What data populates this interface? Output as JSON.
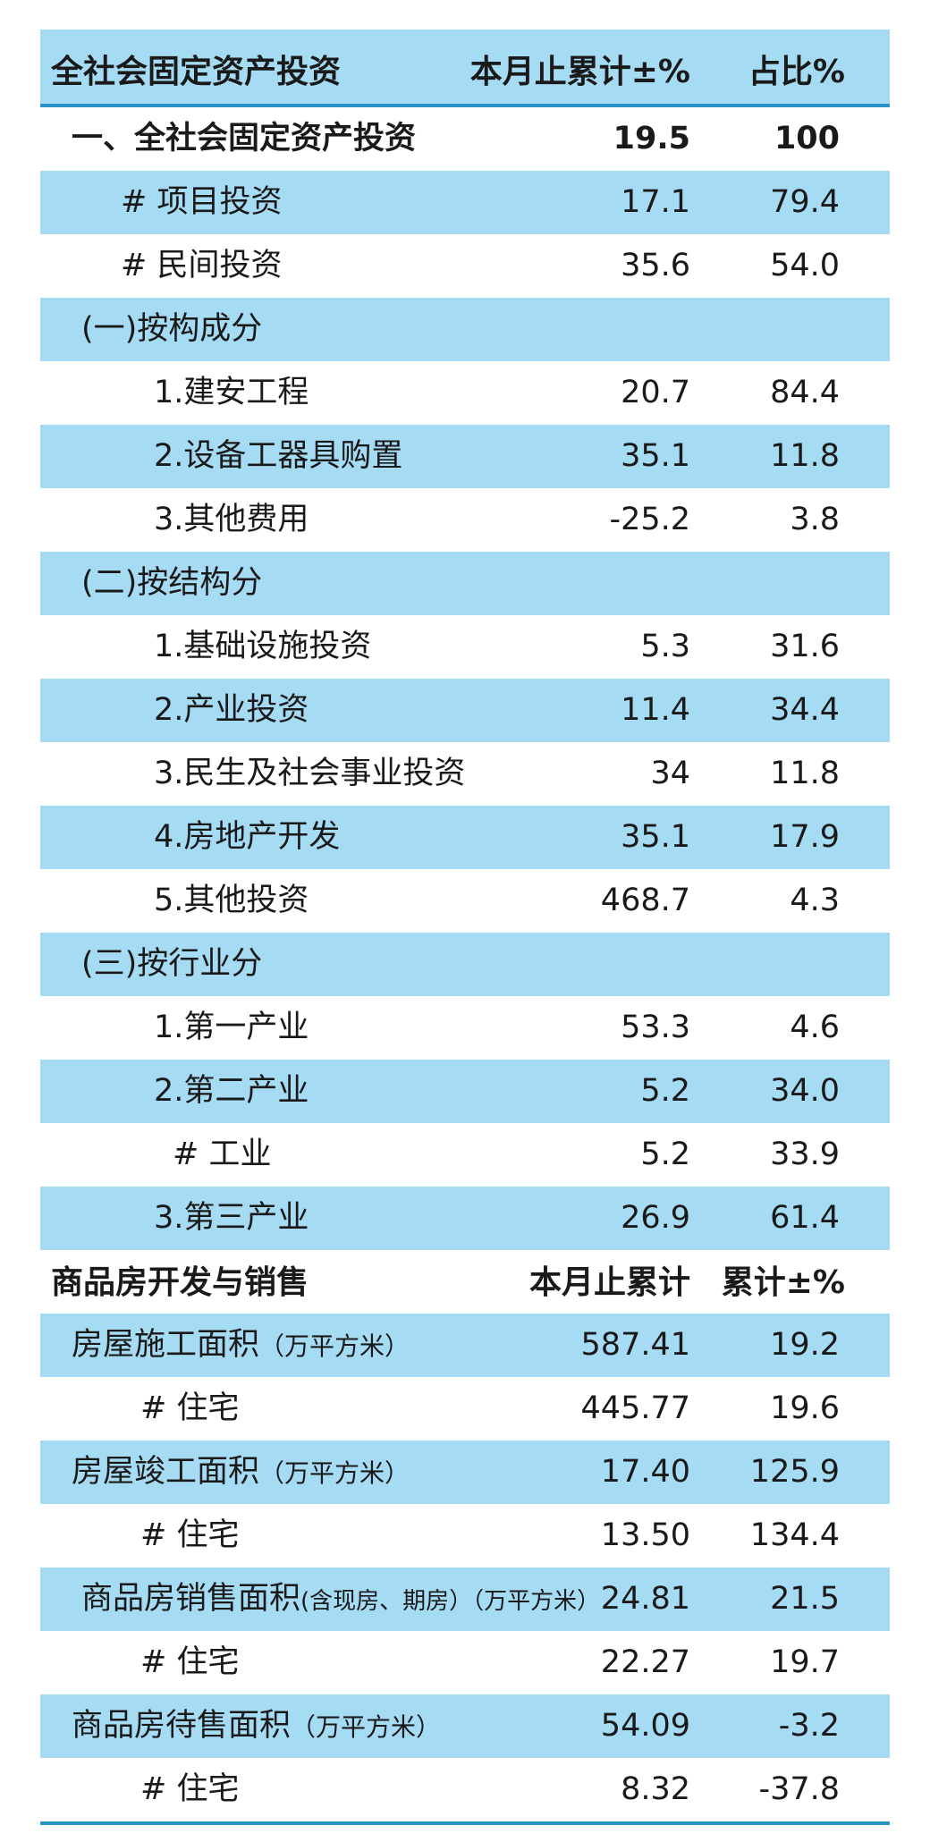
{
  "investment": {
    "header": {
      "title": "全社会固定资产投资",
      "col1": "本月止累计±%",
      "col2": "占比%"
    },
    "rows": [
      {
        "label": "一、全社会固定资产投资",
        "v1": "19.5",
        "v2": "100"
      },
      {
        "label": "# 项目投资",
        "v1": "17.1",
        "v2": "79.4"
      },
      {
        "label": "# 民间投资",
        "v1": "35.6",
        "v2": "54.0"
      },
      {
        "label": "(一)按构成分",
        "v1": "",
        "v2": ""
      },
      {
        "label": "1.建安工程",
        "v1": "20.7",
        "v2": "84.4"
      },
      {
        "label": "2.设备工器具购置",
        "v1": "35.1",
        "v2": "11.8"
      },
      {
        "label": "3.其他费用",
        "v1": "-25.2",
        "v2": "3.8"
      },
      {
        "label": "(二)按结构分",
        "v1": "",
        "v2": ""
      },
      {
        "label": "1.基础设施投资",
        "v1": "5.3",
        "v2": "31.6"
      },
      {
        "label": "2.产业投资",
        "v1": "11.4",
        "v2": "34.4"
      },
      {
        "label": "3.民生及社会事业投资",
        "v1": "34",
        "v2": "11.8"
      },
      {
        "label": "4.房地产开发",
        "v1": "35.1",
        "v2": "17.9"
      },
      {
        "label": "5.其他投资",
        "v1": "468.7",
        "v2": "4.3"
      },
      {
        "label": "(三)按行业分",
        "v1": "",
        "v2": ""
      },
      {
        "label": "1.第一产业",
        "v1": "53.3",
        "v2": "4.6"
      },
      {
        "label": "2.第二产业",
        "v1": "5.2",
        "v2": "34.0"
      },
      {
        "label": "# 工业",
        "v1": "5.2",
        "v2": "33.9"
      },
      {
        "label": "3.第三产业",
        "v1": "26.9",
        "v2": "61.4"
      }
    ]
  },
  "realestate": {
    "header": {
      "title": "商品房开发与销售",
      "col1": "本月止累计",
      "col2": "累计±%"
    },
    "rows": [
      {
        "label": "房屋施工面积",
        "unit": "（万平方米）",
        "v1": "587.41",
        "v2": "19.2"
      },
      {
        "label": "# 住宅",
        "unit": "",
        "v1": "445.77",
        "v2": "19.6"
      },
      {
        "label": "房屋竣工面积",
        "unit": "（万平方米）",
        "v1": "17.40",
        "v2": "125.9"
      },
      {
        "label": "# 住宅",
        "unit": "",
        "v1": "13.50",
        "v2": "134.4"
      },
      {
        "label": "商品房销售面积",
        "unit": "(含现房、期房）（万平方米）",
        "v1": "24.81",
        "v2": "21.5"
      },
      {
        "label": "# 住宅",
        "unit": "",
        "v1": "22.27",
        "v2": "19.7"
      },
      {
        "label": "商品房待售面积",
        "unit": "（万平方米）",
        "v1": "54.09",
        "v2": "-3.2"
      },
      {
        "label": "# 住宅",
        "unit": "",
        "v1": "8.32",
        "v2": "-37.8"
      }
    ]
  }
}
